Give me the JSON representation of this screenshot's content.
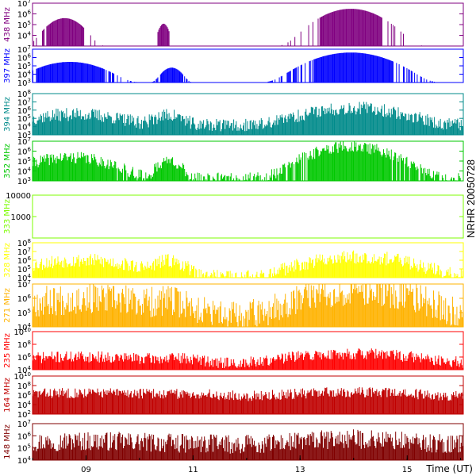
{
  "chart_data": {
    "type": "bar",
    "side_title": "NRHR 20050728",
    "x_axis": {
      "label": "Time (UT)",
      "range": [
        8,
        16.05
      ],
      "ticks": [
        {
          "value": 9,
          "label": "09"
        },
        {
          "value": 11,
          "label": "11"
        },
        {
          "value": 13,
          "label": "13"
        },
        {
          "value": 15,
          "label": "15"
        }
      ]
    },
    "panels": [
      {
        "name": "438 MHz",
        "color": "#800080",
        "log": true,
        "ylim": [
          1000,
          10000000
        ],
        "y_ticks": [
          {
            "v": 10000,
            "e": "4"
          },
          {
            "v": 100000,
            "e": "5"
          },
          {
            "v": 1000000,
            "e": "6"
          },
          {
            "v": 10000000,
            "e": "7"
          }
        ],
        "baseline": 1000,
        "noise": 0,
        "density": 0.25,
        "points": 500,
        "seed": 11,
        "bursts": [
          {
            "t": 8.6,
            "w": 0.25,
            "amp": 400000
          },
          {
            "t": 10.45,
            "w": 0.08,
            "amp": 120000
          },
          {
            "t": 13.95,
            "w": 0.42,
            "amp": 3000000
          }
        ]
      },
      {
        "name": "397 MHz",
        "color": "#0000ff",
        "log": true,
        "ylim": [
          1000,
          10000000
        ],
        "y_ticks": [
          {
            "v": 1000,
            "e": "3"
          },
          {
            "v": 10000,
            "e": "4"
          },
          {
            "v": 100000,
            "e": "5"
          },
          {
            "v": 1000000,
            "e": "6"
          },
          {
            "v": 10000000,
            "e": "7"
          }
        ],
        "baseline": 1000,
        "noise": 0,
        "density": 0.4,
        "points": 500,
        "seed": 23,
        "bursts": [
          {
            "t": 8.7,
            "w": 0.45,
            "amp": 300000
          },
          {
            "t": 10.6,
            "w": 0.15,
            "amp": 60000
          },
          {
            "t": 13.95,
            "w": 0.5,
            "amp": 4000000
          }
        ]
      },
      {
        "name": "394 MHz",
        "color": "#008b8b",
        "log": true,
        "ylim": [
          1000,
          100000000
        ],
        "y_ticks": [
          {
            "v": 1000,
            "e": "3"
          },
          {
            "v": 10000,
            "e": "4"
          },
          {
            "v": 100000,
            "e": "5"
          },
          {
            "v": 1000000,
            "e": "6"
          },
          {
            "v": 10000000,
            "e": "7"
          },
          {
            "v": 100000000,
            "e": "8"
          }
        ],
        "baseline": 12000,
        "noise": 1.6,
        "density": 1,
        "points": 500,
        "seed": 37,
        "bursts": [
          {
            "t": 8.8,
            "w": 0.7,
            "amp": 250000
          },
          {
            "t": 10.55,
            "w": 0.25,
            "amp": 200000
          },
          {
            "t": 14.0,
            "w": 0.7,
            "amp": 1500000
          }
        ]
      },
      {
        "name": "352 MHz",
        "color": "#00c800",
        "log": true,
        "ylim": [
          1000,
          10000000
        ],
        "y_ticks": [
          {
            "v": 1000,
            "e": "3"
          },
          {
            "v": 10000,
            "e": "4"
          },
          {
            "v": 100000,
            "e": "5"
          },
          {
            "v": 1000000,
            "e": "6"
          },
          {
            "v": 10000000,
            "e": "7"
          }
        ],
        "baseline": 1500,
        "noise": 1.2,
        "density": 0.85,
        "points": 500,
        "seed": 41,
        "bursts": [
          {
            "t": 8.7,
            "w": 0.6,
            "amp": 200000
          },
          {
            "t": 10.55,
            "w": 0.18,
            "amp": 100000
          },
          {
            "t": 13.95,
            "w": 0.55,
            "amp": 2500000
          }
        ]
      },
      {
        "name": "333 MHz",
        "color": "#7cfc00",
        "log": true,
        "ylim": [
          100,
          10000
        ],
        "y_ticks": [
          {
            "v": 1000,
            "label": "1000"
          },
          {
            "v": 10000,
            "label": "10000"
          }
        ],
        "baseline": 100,
        "noise": 0,
        "density": 0,
        "points": 500,
        "seed": 5,
        "bursts": []
      },
      {
        "name": "328 MHz",
        "color": "#ffff00",
        "log": true,
        "ylim": [
          10000,
          100000000
        ],
        "y_ticks": [
          {
            "v": 10000,
            "e": "4"
          },
          {
            "v": 100000,
            "e": "5"
          },
          {
            "v": 1000000,
            "e": "6"
          },
          {
            "v": 10000000,
            "e": "7"
          },
          {
            "v": 100000000,
            "e": "8"
          }
        ],
        "baseline": 10000,
        "noise": 1.6,
        "density": 0.95,
        "points": 500,
        "seed": 53,
        "bursts": [
          {
            "t": 8.9,
            "w": 0.8,
            "amp": 800000
          },
          {
            "t": 10.55,
            "w": 0.25,
            "amp": 700000
          },
          {
            "t": 14.1,
            "w": 0.75,
            "amp": 2000000
          }
        ]
      },
      {
        "name": "271 MHz",
        "color": "#ffb300",
        "log": true,
        "ylim": [
          10000,
          10000000
        ],
        "y_ticks": [
          {
            "v": 10000,
            "e": "4"
          },
          {
            "v": 100000,
            "e": "5"
          },
          {
            "v": 1000000,
            "e": "6"
          },
          {
            "v": 10000000,
            "e": "7"
          }
        ],
        "baseline": 30000,
        "noise": 2.2,
        "density": 1,
        "points": 500,
        "seed": 67,
        "bursts": [
          {
            "t": 9.0,
            "w": 1.3,
            "amp": 700000
          },
          {
            "t": 10.6,
            "w": 0.35,
            "amp": 300000
          },
          {
            "t": 14.1,
            "w": 0.9,
            "amp": 3000000
          }
        ]
      },
      {
        "name": "235 MHz",
        "color": "#ff0000",
        "log": true,
        "ylim": [
          10000,
          10000000000
        ],
        "y_ticks": [
          {
            "v": 10000,
            "e": "4"
          },
          {
            "v": 1000000,
            "e": "6"
          },
          {
            "v": 100000000,
            "e": "8"
          },
          {
            "v": 10000000000,
            "e": "10"
          }
        ],
        "baseline": 70000,
        "noise": 1.8,
        "density": 1,
        "points": 500,
        "seed": 71,
        "bursts": [
          {
            "t": 8.9,
            "w": 1.4,
            "amp": 800000
          },
          {
            "t": 10.8,
            "w": 0.4,
            "amp": 300000
          },
          {
            "t": 14.0,
            "w": 1.0,
            "amp": 2500000
          }
        ]
      },
      {
        "name": "164 MHz",
        "color": "#c00000",
        "log": true,
        "ylim": [
          100,
          10000000000
        ],
        "y_ticks": [
          {
            "v": 100,
            "e": "2"
          },
          {
            "v": 10000,
            "e": "4"
          },
          {
            "v": 1000000,
            "e": "6"
          },
          {
            "v": 100000000,
            "e": "8"
          },
          {
            "v": 10000000000,
            "e": "10"
          }
        ],
        "baseline": 300000,
        "noise": 2.2,
        "density": 1,
        "points": 500,
        "seed": 83,
        "bursts": [
          {
            "t": 9.0,
            "w": 1.6,
            "amp": 2000000
          },
          {
            "t": 11.0,
            "w": 0.6,
            "amp": 600000
          },
          {
            "t": 14.0,
            "w": 1.1,
            "amp": 3000000
          }
        ]
      },
      {
        "name": "148 MHz",
        "color": "#800000",
        "log": true,
        "ylim": [
          10000,
          10000000
        ],
        "y_ticks": [
          {
            "v": 10000,
            "e": "4"
          },
          {
            "v": 100000,
            "e": "5"
          },
          {
            "v": 1000000,
            "e": "6"
          },
          {
            "v": 10000000,
            "e": "7"
          }
        ],
        "baseline": 150000,
        "noise": 1.6,
        "density": 1,
        "points": 500,
        "seed": 97,
        "bursts": [
          {
            "t": 9.0,
            "w": 1.6,
            "amp": 150000
          },
          {
            "t": 14.0,
            "w": 1.1,
            "amp": 300000
          }
        ]
      }
    ]
  }
}
